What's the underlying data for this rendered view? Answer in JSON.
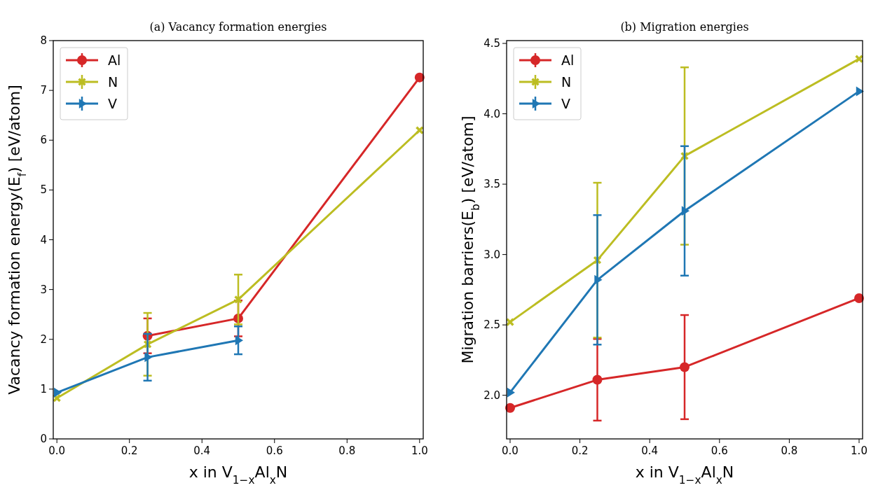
{
  "chart_data": [
    {
      "type": "line",
      "title": "(a) Vacancy formation energies",
      "xlabel": "x in V$_{1−x}$Al$_{x}$N",
      "ylabel": "Vacancy formation energy(E$_{f}$) [eV/atom]",
      "x": [
        0,
        0.25,
        0.5,
        1.0
      ],
      "xlim": [
        -0.01,
        1.01
      ],
      "xticks": [
        {
          "value": 0,
          "label": "0.0"
        },
        {
          "value": 0.2,
          "label": "0.2"
        },
        {
          "value": 0.4,
          "label": "0.4"
        },
        {
          "value": 0.6,
          "label": "0.6"
        },
        {
          "value": 0.8,
          "label": "0.8"
        },
        {
          "value": 1,
          "label": "1.0"
        }
      ],
      "ylim": [
        0,
        8
      ],
      "yticks": [
        0,
        1,
        2,
        3,
        4,
        5,
        6,
        7,
        8
      ],
      "legend": "top left",
      "grid": false,
      "series": [
        {
          "name": "Al",
          "color": "#d62728",
          "marker": "circle",
          "values": [
            null,
            2.07,
            2.42,
            7.26
          ],
          "errors": [
            null,
            0.35,
            0.36,
            null
          ]
        },
        {
          "name": "N",
          "color": "#bcbd22",
          "marker": "cross",
          "values": [
            0.82,
            1.9,
            2.8,
            6.2
          ],
          "errors": [
            null,
            0.63,
            0.5,
            null
          ]
        },
        {
          "name": "V",
          "color": "#1f77b4",
          "marker": "triangle",
          "values": [
            0.93,
            1.64,
            1.98,
            null
          ],
          "errors": [
            null,
            0.47,
            0.28,
            null
          ]
        }
      ]
    },
    {
      "type": "line",
      "title": "(b) Migration energies",
      "xlabel": "x in V$_{1−x}$Al$_{x}$N",
      "ylabel": "Migration barriers(E$_{b}$) [eV/atom]",
      "x": [
        0,
        0.25,
        0.5,
        1.0
      ],
      "xlim": [
        -0.01,
        1.01
      ],
      "xticks": [
        {
          "value": 0,
          "label": "0.0"
        },
        {
          "value": 0.2,
          "label": "0.2"
        },
        {
          "value": 0.4,
          "label": "0.4"
        },
        {
          "value": 0.6,
          "label": "0.6"
        },
        {
          "value": 0.8,
          "label": "0.8"
        },
        {
          "value": 1,
          "label": "1.0"
        }
      ],
      "ylim": [
        1.69,
        4.52
      ],
      "yticks": [
        {
          "value": 2,
          "label": "2.0"
        },
        {
          "value": 2.5,
          "label": "2.5"
        },
        {
          "value": 3,
          "label": "3.0"
        },
        {
          "value": 3.5,
          "label": "3.5"
        },
        {
          "value": 4,
          "label": "4.0"
        },
        {
          "value": 4.5,
          "label": "4.5"
        }
      ],
      "legend": "top left",
      "grid": false,
      "series": [
        {
          "name": "Al",
          "color": "#d62728",
          "marker": "circle",
          "values": [
            1.91,
            2.11,
            2.2,
            2.69
          ],
          "errors": [
            null,
            0.29,
            0.37,
            null
          ]
        },
        {
          "name": "N",
          "color": "#bcbd22",
          "marker": "cross",
          "values": [
            2.52,
            2.96,
            3.7,
            4.39
          ],
          "errors": [
            null,
            0.55,
            0.63,
            null
          ]
        },
        {
          "name": "V",
          "color": "#1f77b4",
          "marker": "triangle",
          "values": [
            2.02,
            2.82,
            3.31,
            4.16
          ],
          "errors": [
            null,
            0.46,
            0.46,
            null
          ]
        }
      ]
    }
  ]
}
